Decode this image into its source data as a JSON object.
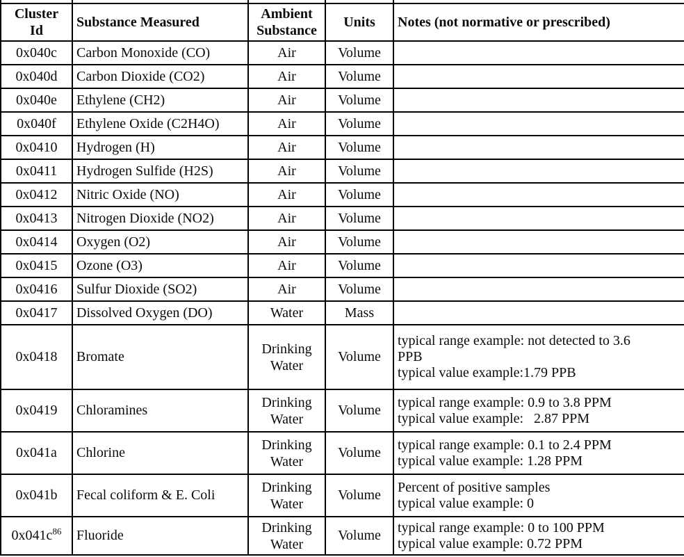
{
  "table": {
    "columns": [
      {
        "key": "cluster_id",
        "label": "Cluster\nId"
      },
      {
        "key": "substance",
        "label": "Substance Measured"
      },
      {
        "key": "ambient",
        "label": "Ambient\nSubstance"
      },
      {
        "key": "units",
        "label": "Units"
      },
      {
        "key": "notes",
        "label": "Notes (not normative or prescribed)"
      }
    ],
    "rows": [
      {
        "cluster_id": "0x040c",
        "substance": "Carbon Monoxide (CO)",
        "ambient": "Air",
        "units": "Volume",
        "notes": []
      },
      {
        "cluster_id": "0x040d",
        "substance": "Carbon Dioxide (CO2)",
        "ambient": "Air",
        "units": "Volume",
        "notes": []
      },
      {
        "cluster_id": "0x040e",
        "substance": "Ethylene (CH2)",
        "ambient": "Air",
        "units": "Volume",
        "notes": []
      },
      {
        "cluster_id": "0x040f",
        "substance": "Ethylene Oxide (C2H4O)",
        "ambient": "Air",
        "units": "Volume",
        "notes": []
      },
      {
        "cluster_id": "0x0410",
        "substance": "Hydrogen (H)",
        "ambient": "Air",
        "units": "Volume",
        "notes": []
      },
      {
        "cluster_id": "0x0411",
        "substance": "Hydrogen Sulfide (H2S)",
        "ambient": "Air",
        "units": "Volume",
        "notes": []
      },
      {
        "cluster_id": "0x0412",
        "substance": "Nitric Oxide (NO)",
        "ambient": "Air",
        "units": "Volume",
        "notes": []
      },
      {
        "cluster_id": "0x0413",
        "substance": "Nitrogen Dioxide (NO2)",
        "ambient": "Air",
        "units": "Volume",
        "notes": []
      },
      {
        "cluster_id": "0x0414",
        "substance": "Oxygen (O2)",
        "ambient": "Air",
        "units": "Volume",
        "notes": []
      },
      {
        "cluster_id": "0x0415",
        "substance": "Ozone (O3)",
        "ambient": "Air",
        "units": "Volume",
        "notes": []
      },
      {
        "cluster_id": "0x0416",
        "substance": "Sulfur Dioxide (SO2)",
        "ambient": "Air",
        "units": "Volume",
        "notes": []
      },
      {
        "cluster_id": "0x0417",
        "substance": "Dissolved Oxygen (DO)",
        "ambient": "Water",
        "units": "Mass",
        "notes": []
      },
      {
        "cluster_id": "0x0418",
        "substance": "Bromate",
        "ambient": "Drinking Water",
        "units": "Volume",
        "notes": [
          "typical range example: not detected to 3.6",
          "PPB",
          "typical value example:1.79 PPB"
        ]
      },
      {
        "cluster_id": "0x0419",
        "substance": "Chloramines",
        "ambient": "Drinking Water",
        "units": "Volume",
        "notes": [
          "typical range example: 0.9 to 3.8 PPM",
          "typical value example:   2.87 PPM"
        ]
      },
      {
        "cluster_id": "0x041a",
        "substance": "Chlorine",
        "ambient": "Drinking Water",
        "units": "Volume",
        "notes": [
          "typical range example: 0.1 to 2.4 PPM",
          "typical value example: 1.28 PPM"
        ]
      },
      {
        "cluster_id": "0x041b",
        "substance": "Fecal coliform & E. Coli",
        "ambient": "Drinking Water",
        "units": "Volume",
        "notes": [
          "Percent of positive samples",
          "typical value example: 0"
        ]
      },
      {
        "cluster_id": "0x041c",
        "cluster_id_sup": "86",
        "substance": "Fluoride",
        "ambient": "Drinking Water",
        "units": "Volume",
        "notes": [
          "typical range example: 0 to 100 PPM",
          "typical value example: 0.72 PPM"
        ]
      }
    ]
  }
}
